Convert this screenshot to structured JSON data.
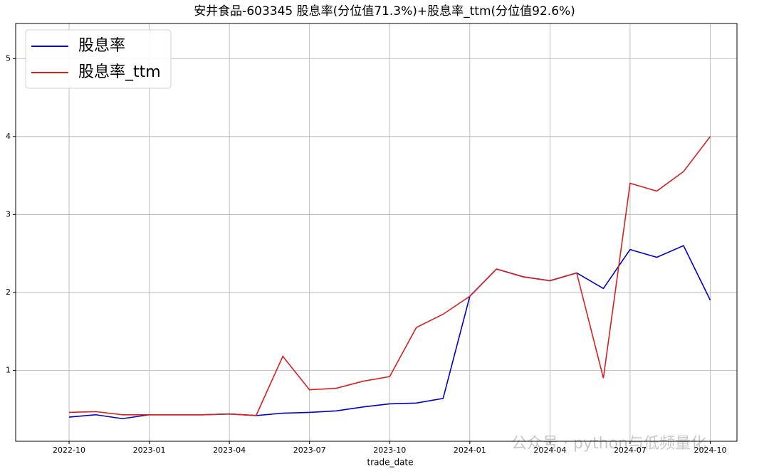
{
  "chart_data": {
    "type": "line",
    "title": "安井食品-603345 股息率(分位值71.3%)+股息率_ttm(分位值92.6%)",
    "x_label": "trade_date",
    "watermark": "公众号 · python与低频量化",
    "x": [
      "2022-10",
      "2022-11",
      "2022-12",
      "2023-01",
      "2023-02",
      "2023-03",
      "2023-04",
      "2023-05",
      "2023-06",
      "2023-07",
      "2023-08",
      "2023-09",
      "2023-10",
      "2023-11",
      "2023-12",
      "2024-01",
      "2024-02",
      "2024-03",
      "2024-04",
      "2024-05",
      "2024-06",
      "2024-07",
      "2024-08",
      "2024-09",
      "2024-10"
    ],
    "series": [
      {
        "name": "股息率",
        "color": "#0000c8",
        "values": [
          0.4,
          0.43,
          0.38,
          0.43,
          0.43,
          0.43,
          0.44,
          0.42,
          0.45,
          0.46,
          0.48,
          0.53,
          0.57,
          0.58,
          0.64,
          1.95,
          2.3,
          2.2,
          2.15,
          2.25,
          2.05,
          2.55,
          2.45,
          2.6,
          1.9
        ]
      },
      {
        "name": "股息率_ttm",
        "color": "#d62020",
        "values": [
          0.46,
          0.47,
          0.43,
          0.43,
          0.43,
          0.43,
          0.44,
          0.42,
          1.18,
          0.75,
          0.77,
          0.86,
          0.92,
          1.55,
          1.72,
          1.95,
          2.3,
          2.2,
          2.15,
          2.25,
          0.9,
          3.4,
          3.3,
          3.55,
          4.0
        ]
      }
    ],
    "xlim": [
      "2022-08",
      "2024-11"
    ],
    "xticks": [
      "2022-10",
      "2023-01",
      "2023-04",
      "2023-07",
      "2023-10",
      "2024-01",
      "2024-04",
      "2024-07",
      "2024-10"
    ],
    "ylim": [
      0.09,
      5.45
    ],
    "yticks": [
      1,
      2,
      3,
      4,
      5
    ],
    "grid": true,
    "legend": "upper left"
  }
}
